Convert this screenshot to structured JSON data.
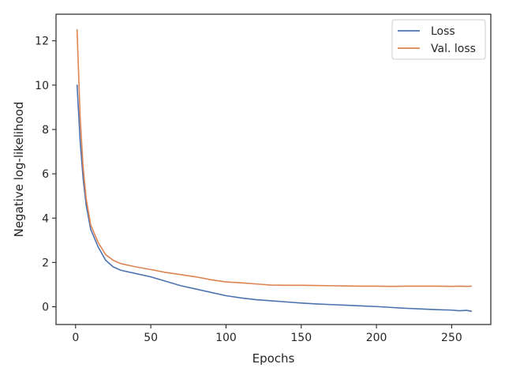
{
  "chart_data": {
    "type": "line",
    "title": "",
    "xlabel": "Epochs",
    "ylabel": "Negative log-likelihood",
    "xlim": [
      -13,
      276
    ],
    "ylim": [
      -0.8,
      13.2
    ],
    "xticks": [
      0,
      50,
      100,
      150,
      200,
      250
    ],
    "yticks": [
      0,
      2,
      4,
      6,
      8,
      10,
      12
    ],
    "grid": false,
    "legend_position": "top-right",
    "series": [
      {
        "name": "Loss",
        "color": "#4c72b0",
        "x": [
          1,
          3,
          5,
          7,
          10,
          15,
          20,
          25,
          30,
          40,
          50,
          60,
          70,
          80,
          90,
          100,
          110,
          120,
          130,
          140,
          150,
          160,
          170,
          180,
          190,
          200,
          210,
          220,
          230,
          240,
          250,
          255,
          260,
          263
        ],
        "y": [
          10.0,
          7.5,
          5.8,
          4.6,
          3.5,
          2.7,
          2.1,
          1.8,
          1.65,
          1.5,
          1.35,
          1.15,
          0.95,
          0.8,
          0.65,
          0.5,
          0.4,
          0.32,
          0.27,
          0.22,
          0.17,
          0.13,
          0.1,
          0.07,
          0.04,
          0.01,
          -0.03,
          -0.07,
          -0.1,
          -0.13,
          -0.15,
          -0.18,
          -0.16,
          -0.2
        ]
      },
      {
        "name": "Val. loss",
        "color": "#dd8452",
        "x": [
          1,
          3,
          5,
          7,
          10,
          15,
          20,
          25,
          30,
          40,
          50,
          60,
          70,
          80,
          90,
          100,
          110,
          120,
          130,
          140,
          150,
          160,
          170,
          180,
          190,
          200,
          210,
          220,
          230,
          240,
          250,
          255,
          260,
          263
        ],
        "y": [
          12.5,
          8.6,
          6.3,
          4.9,
          3.7,
          2.9,
          2.35,
          2.1,
          1.95,
          1.8,
          1.68,
          1.55,
          1.45,
          1.35,
          1.22,
          1.12,
          1.08,
          1.03,
          0.98,
          0.97,
          0.97,
          0.96,
          0.95,
          0.94,
          0.93,
          0.93,
          0.92,
          0.93,
          0.93,
          0.93,
          0.92,
          0.93,
          0.92,
          0.93
        ]
      }
    ]
  }
}
